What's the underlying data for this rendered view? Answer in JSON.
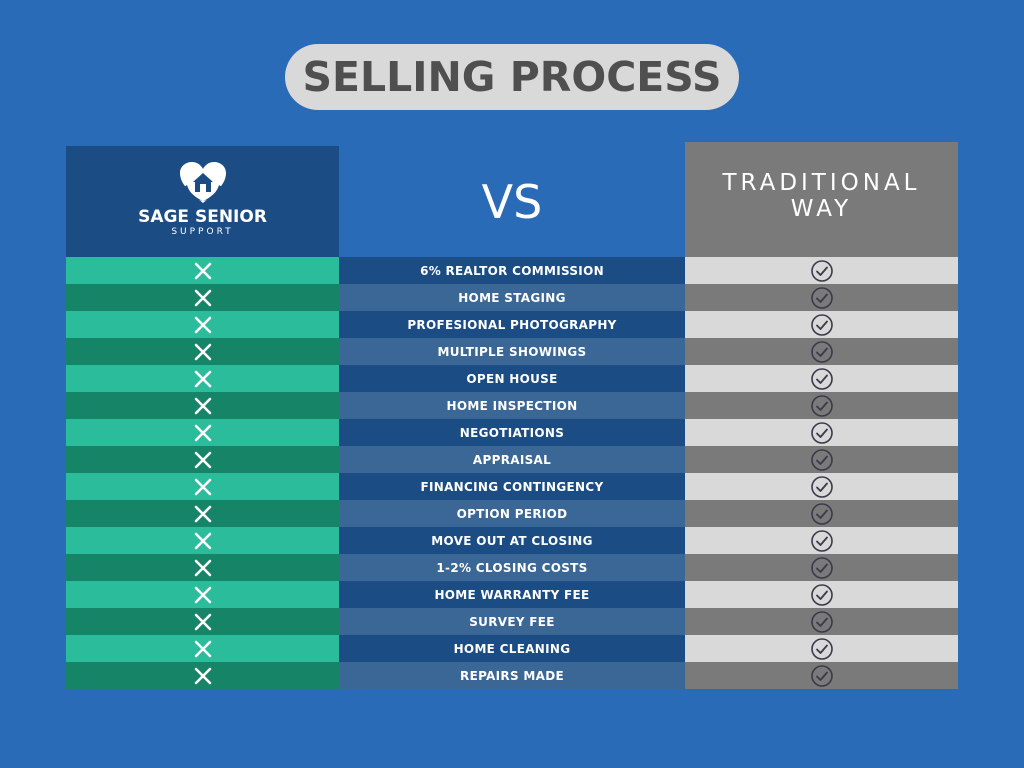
{
  "title": "SELLING PROCESS",
  "left_header": {
    "brand_name": "SAGE SENIOR",
    "brand_sub": "SUPPORT",
    "icon": "heart-house-logo-icon"
  },
  "vs_label": "VS",
  "right_header": {
    "line1": "TRADITIONAL",
    "line2": "WAY"
  },
  "colors": {
    "background": "#2a6bb7",
    "left_row_light": "#2bbd9b",
    "left_row_dark": "#168466",
    "mid_row_dark": "#1b4c84",
    "mid_row_light": "#3a6795",
    "right_row_light": "#d9d9d9",
    "right_row_dark": "#7a7a7a"
  },
  "rows": [
    {
      "label": "6% REALTOR COMMISSION"
    },
    {
      "label": "HOME STAGING"
    },
    {
      "label": "PROFESIONAL PHOTOGRAPHY"
    },
    {
      "label": "MULTIPLE SHOWINGS"
    },
    {
      "label": "OPEN HOUSE"
    },
    {
      "label": "HOME INSPECTION"
    },
    {
      "label": "NEGOTIATIONS"
    },
    {
      "label": "APPRAISAL"
    },
    {
      "label": "FINANCING CONTINGENCY"
    },
    {
      "label": "OPTION PERIOD"
    },
    {
      "label": "MOVE OUT AT CLOSING"
    },
    {
      "label": "1-2% CLOSING COSTS"
    },
    {
      "label": "HOME WARRANTY FEE"
    },
    {
      "label": "SURVEY FEE"
    },
    {
      "label": "HOME CLEANING"
    },
    {
      "label": "REPAIRS MADE"
    }
  ],
  "icons": {
    "left_column": "x-icon",
    "right_column": "check-circle-icon"
  }
}
